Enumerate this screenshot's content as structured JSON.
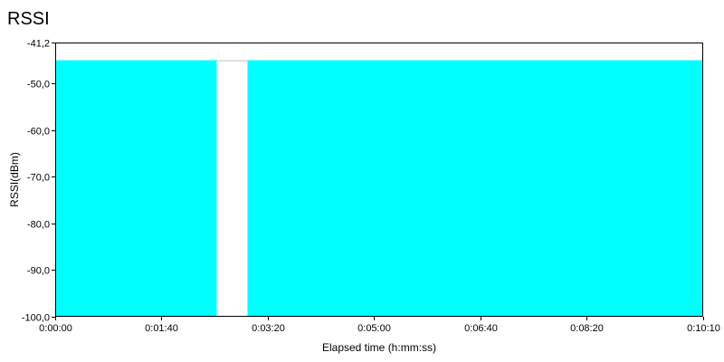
{
  "chart_data": {
    "type": "area",
    "title": "RSSI",
    "xlabel": "Elapsed time (h:mm:ss)",
    "ylabel": "RSSI(dBm)",
    "xlim": [
      0,
      610
    ],
    "ylim": [
      -100.0,
      -41.2
    ],
    "x_ticks": [
      {
        "value": 0,
        "label": "0:00:00"
      },
      {
        "value": 100,
        "label": "0:01:40"
      },
      {
        "value": 200,
        "label": "0:03:20"
      },
      {
        "value": 300,
        "label": "0:05:00"
      },
      {
        "value": 400,
        "label": "0:06:40"
      },
      {
        "value": 500,
        "label": "0:08:20"
      },
      {
        "value": 610,
        "label": "0:10:10"
      }
    ],
    "y_ticks": [
      {
        "value": -41.2,
        "label": "-41,2"
      },
      {
        "value": -50.0,
        "label": "-50,0"
      },
      {
        "value": -60.0,
        "label": "-60,0"
      },
      {
        "value": -70.0,
        "label": "-70,0"
      },
      {
        "value": -80.0,
        "label": "-80,0"
      },
      {
        "value": -90.0,
        "label": "-90,0"
      },
      {
        "value": -100.0,
        "label": "-100,0"
      }
    ],
    "grid": false,
    "legend": "none",
    "series": [
      {
        "color": "#00FFFF",
        "segments": [
          {
            "x": [
              0,
              152
            ],
            "y": [
              -45,
              -45
            ]
          },
          {
            "x": [
              181,
              609
            ],
            "y": [
              -45,
              -45
            ]
          }
        ]
      }
    ],
    "gap": {
      "x": [
        152,
        181
      ],
      "y": -45,
      "style": "dotted",
      "color": "#808080"
    }
  }
}
